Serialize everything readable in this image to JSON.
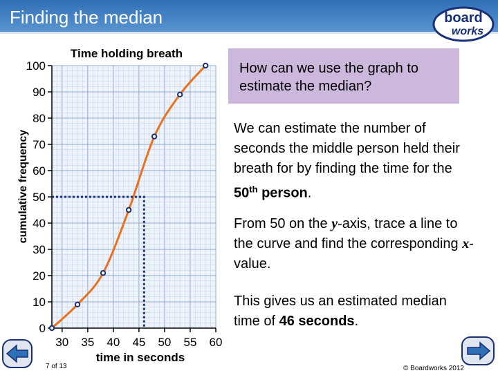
{
  "header": {
    "title": "Finding the median"
  },
  "logo": {
    "line1": "board",
    "line2": "works",
    "accent": "#f08a24"
  },
  "chart_data": {
    "type": "line",
    "title": "Time holding breath",
    "xlabel": "time in seconds",
    "ylabel": "cumulative frequency",
    "xlim": [
      28,
      60
    ],
    "ylim": [
      0,
      100
    ],
    "x_ticks": [
      "30",
      "35",
      "40",
      "45",
      "50",
      "55",
      "60"
    ],
    "y_ticks": [
      "0",
      "10",
      "20",
      "30",
      "40",
      "50",
      "60",
      "70",
      "80",
      "90",
      "100"
    ],
    "points": [
      {
        "x": 28,
        "y": 0
      },
      {
        "x": 33,
        "y": 9
      },
      {
        "x": 38,
        "y": 21
      },
      {
        "x": 43,
        "y": 45
      },
      {
        "x": 48,
        "y": 73
      },
      {
        "x": 53,
        "y": 89
      },
      {
        "x": 58,
        "y": 100
      }
    ],
    "median_trace": {
      "y": 50,
      "x": 46
    },
    "grid": true,
    "curve_color": "#e8711f",
    "point_color": "#1a2f7a"
  },
  "question": "How can we use the graph to estimate the median?",
  "paragraph1": {
    "text": "We can estimate the number of seconds the middle person held their breath for by finding the time for the",
    "bold_num": "50",
    "sup": "th",
    "bold_word": "person",
    "end": "."
  },
  "paragraph2": {
    "part1": "From 50 on the ",
    "var1": "y",
    "part2": "-axis, trace a line to the curve and find the corresponding ",
    "var2": "x",
    "part3": "-value."
  },
  "paragraph3": {
    "text": "This gives us an estimated median time of",
    "bold": "46 seconds",
    "end": "."
  },
  "footer": {
    "slide_number": "7 of 13",
    "copyright": "© Boardworks 2012"
  }
}
